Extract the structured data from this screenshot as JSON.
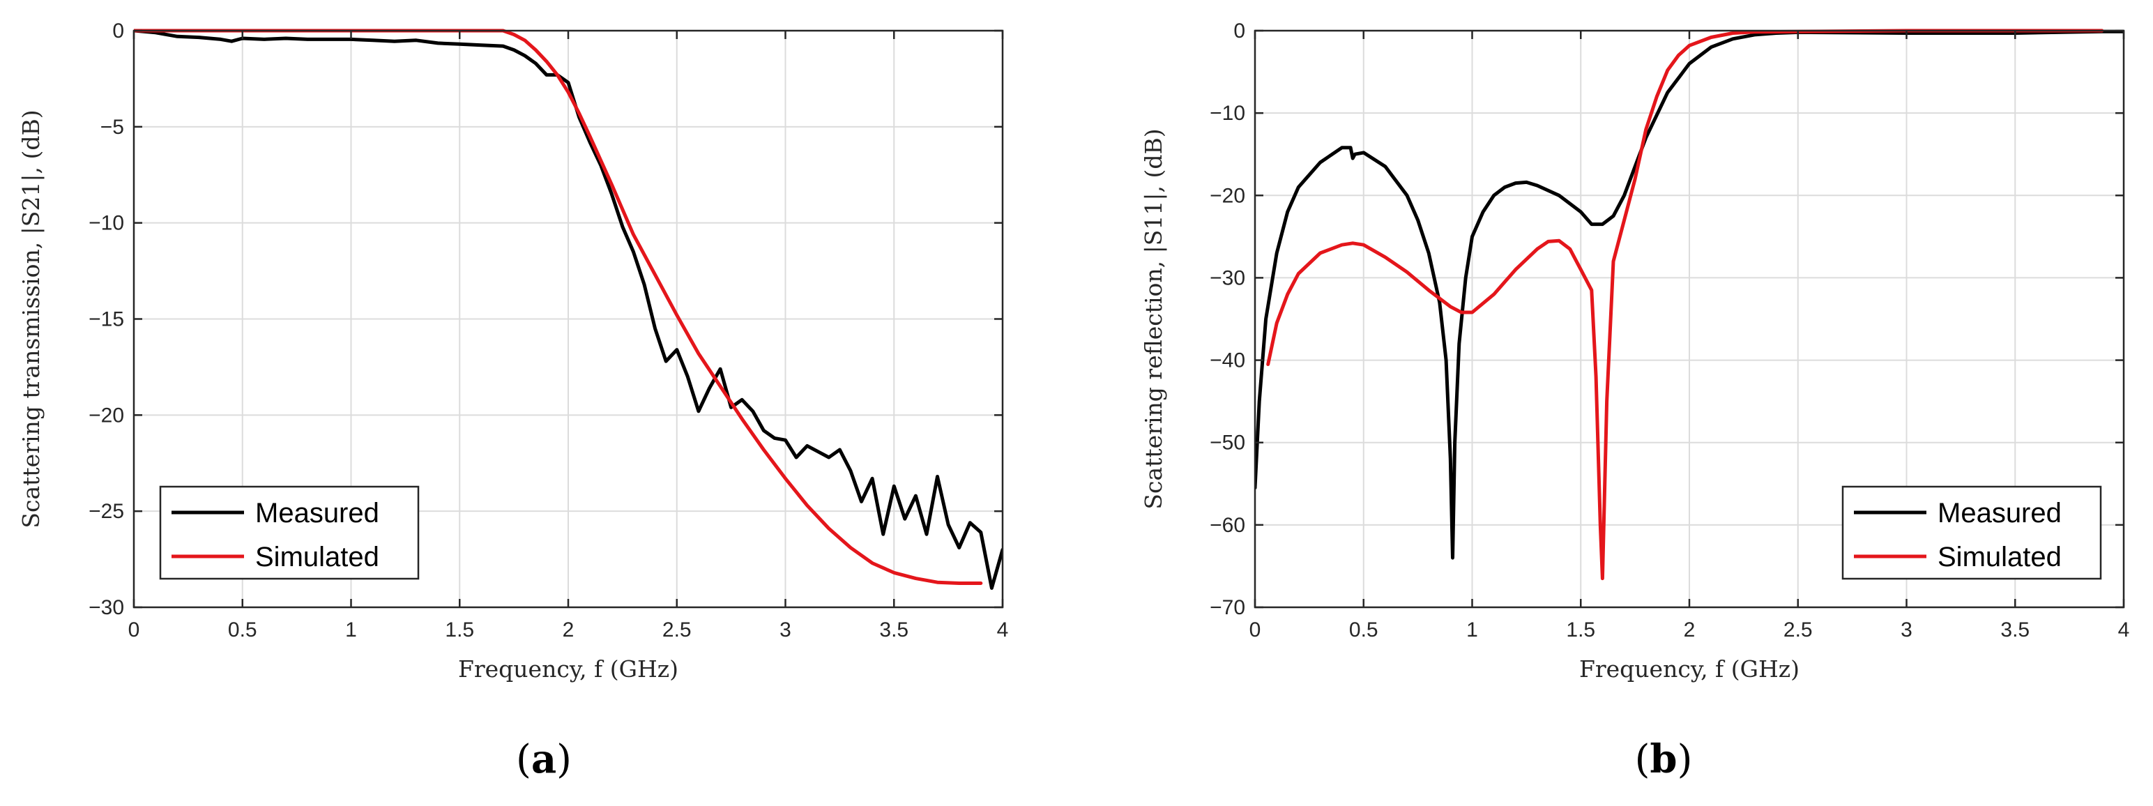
{
  "colors": {
    "measured": "#000000",
    "simulated": "#e4161b",
    "grid": "#dcdcdc",
    "axis": "#262626"
  },
  "chart_data": [
    {
      "type": "line",
      "panel_label_prefix": "(",
      "panel_label": "a",
      "panel_label_suffix": ")",
      "xlabel": "Frequency, f (GHz)",
      "ylabel": "Scattering transmission, |S21|, (dB)",
      "xlim": [
        0,
        4
      ],
      "ylim": [
        -30,
        0
      ],
      "xticks": [
        0,
        0.5,
        1,
        1.5,
        2,
        2.5,
        3,
        3.5,
        4
      ],
      "xtick_labels": [
        "0",
        "0.5",
        "1",
        "1.5",
        "2",
        "2.5",
        "3",
        "3.5",
        "4"
      ],
      "yticks": [
        -30,
        -25,
        -20,
        -15,
        -10,
        -5,
        0
      ],
      "ytick_labels": [
        "−30",
        "−25",
        "−20",
        "−15",
        "−10",
        "−5",
        "0"
      ],
      "grid": true,
      "legend_position": "bottom-left",
      "series": [
        {
          "name": "Measured",
          "color": "#000000",
          "x": [
            0,
            0.1,
            0.2,
            0.3,
            0.4,
            0.45,
            0.5,
            0.6,
            0.7,
            0.8,
            0.9,
            1.0,
            1.1,
            1.2,
            1.3,
            1.4,
            1.5,
            1.6,
            1.7,
            1.75,
            1.8,
            1.85,
            1.9,
            1.95,
            2.0,
            2.05,
            2.1,
            2.15,
            2.2,
            2.25,
            2.3,
            2.35,
            2.4,
            2.45,
            2.5,
            2.55,
            2.6,
            2.65,
            2.7,
            2.75,
            2.8,
            2.85,
            2.9,
            2.95,
            3.0,
            3.05,
            3.1,
            3.15,
            3.2,
            3.25,
            3.3,
            3.35,
            3.4,
            3.45,
            3.5,
            3.55,
            3.6,
            3.65,
            3.7,
            3.75,
            3.8,
            3.85,
            3.9,
            3.95,
            4.0
          ],
          "y": [
            0,
            -0.1,
            -0.3,
            -0.35,
            -0.45,
            -0.55,
            -0.4,
            -0.45,
            -0.4,
            -0.45,
            -0.45,
            -0.45,
            -0.5,
            -0.55,
            -0.5,
            -0.65,
            -0.7,
            -0.75,
            -0.8,
            -1.0,
            -1.3,
            -1.7,
            -2.3,
            -2.3,
            -2.7,
            -4.5,
            -5.8,
            -7.0,
            -8.5,
            -10.2,
            -11.5,
            -13.2,
            -15.5,
            -17.2,
            -16.6,
            -18.0,
            -19.8,
            -18.6,
            -17.6,
            -19.6,
            -19.2,
            -19.8,
            -20.8,
            -21.2,
            -21.3,
            -22.2,
            -21.6,
            -21.9,
            -22.2,
            -21.8,
            -22.9,
            -24.5,
            -23.3,
            -26.2,
            -23.7,
            -25.4,
            -24.2,
            -26.2,
            -23.2,
            -25.7,
            -26.9,
            -25.6,
            -26.1,
            -29.0,
            -27.0
          ]
        },
        {
          "name": "Simulated",
          "color": "#e4161b",
          "x": [
            0,
            0.5,
            1.0,
            1.5,
            1.7,
            1.75,
            1.8,
            1.85,
            1.9,
            1.95,
            2.0,
            2.05,
            2.1,
            2.2,
            2.3,
            2.4,
            2.5,
            2.6,
            2.7,
            2.8,
            2.9,
            3.0,
            3.1,
            3.2,
            3.3,
            3.4,
            3.5,
            3.6,
            3.7,
            3.8,
            3.9
          ],
          "y": [
            0,
            0,
            0,
            0,
            0,
            -0.2,
            -0.5,
            -1.0,
            -1.6,
            -2.3,
            -3.2,
            -4.3,
            -5.5,
            -8.0,
            -10.6,
            -12.7,
            -14.8,
            -16.8,
            -18.5,
            -20.2,
            -21.8,
            -23.3,
            -24.7,
            -25.9,
            -26.9,
            -27.7,
            -28.2,
            -28.5,
            -28.7,
            -28.75,
            -28.75
          ]
        }
      ]
    },
    {
      "type": "line",
      "panel_label_prefix": "(",
      "panel_label": "b",
      "panel_label_suffix": ")",
      "xlabel": "Frequency, f (GHz)",
      "ylabel": "Scattering reflection, |S11|, (dB)",
      "xlim": [
        0,
        4
      ],
      "ylim": [
        -70,
        0
      ],
      "xticks": [
        0,
        0.5,
        1,
        1.5,
        2,
        2.5,
        3,
        3.5,
        4
      ],
      "xtick_labels": [
        "0",
        "0.5",
        "1",
        "1.5",
        "2",
        "2.5",
        "3",
        "3.5",
        "4"
      ],
      "yticks": [
        -70,
        -60,
        -50,
        -40,
        -30,
        -20,
        -10,
        0
      ],
      "ytick_labels": [
        "−70",
        "−60",
        "−50",
        "−40",
        "−30",
        "−20",
        "−10",
        "0"
      ],
      "grid": true,
      "legend_position": "bottom-right",
      "series": [
        {
          "name": "Measured",
          "color": "#000000",
          "x": [
            0.0,
            0.02,
            0.05,
            0.1,
            0.15,
            0.2,
            0.3,
            0.4,
            0.44,
            0.45,
            0.46,
            0.5,
            0.6,
            0.7,
            0.75,
            0.8,
            0.85,
            0.88,
            0.9,
            0.91,
            0.92,
            0.94,
            0.97,
            1.0,
            1.05,
            1.1,
            1.15,
            1.2,
            1.25,
            1.3,
            1.4,
            1.5,
            1.55,
            1.6,
            1.65,
            1.7,
            1.75,
            1.8,
            1.9,
            2.0,
            2.1,
            2.2,
            2.3,
            2.4,
            2.5,
            3.0,
            3.5,
            3.9,
            4.0
          ],
          "y": [
            -55.5,
            -45,
            -35,
            -27,
            -22,
            -19,
            -16,
            -14.2,
            -14.2,
            -15.5,
            -15.0,
            -14.8,
            -16.5,
            -20,
            -23,
            -27,
            -33,
            -40,
            -52,
            -64,
            -50,
            -38,
            -30,
            -25,
            -22,
            -20,
            -19,
            -18.5,
            -18.4,
            -18.8,
            -20,
            -22,
            -23.5,
            -23.5,
            -22.5,
            -20,
            -16.5,
            -13,
            -7.5,
            -4,
            -2,
            -1,
            -0.5,
            -0.3,
            -0.2,
            -0.3,
            -0.3,
            -0.1,
            -0.1
          ]
        },
        {
          "name": "Simulated",
          "color": "#e4161b",
          "x": [
            0.06,
            0.1,
            0.15,
            0.2,
            0.3,
            0.4,
            0.45,
            0.5,
            0.6,
            0.7,
            0.8,
            0.9,
            0.95,
            1.0,
            1.1,
            1.2,
            1.3,
            1.35,
            1.4,
            1.45,
            1.5,
            1.55,
            1.57,
            1.59,
            1.6,
            1.62,
            1.65,
            1.7,
            1.75,
            1.8,
            1.85,
            1.9,
            1.95,
            2.0,
            2.1,
            2.2,
            2.3,
            2.5,
            3.0,
            3.5,
            3.9
          ],
          "y": [
            -40.5,
            -35.5,
            -32,
            -29.5,
            -27,
            -26,
            -25.8,
            -26,
            -27.5,
            -29.3,
            -31.5,
            -33.5,
            -34.2,
            -34.2,
            -32,
            -29,
            -26.5,
            -25.6,
            -25.5,
            -26.5,
            -29,
            -31.5,
            -42,
            -60,
            -66.5,
            -45,
            -28,
            -23,
            -18,
            -12,
            -8,
            -4.8,
            -3,
            -1.8,
            -0.8,
            -0.3,
            -0.15,
            -0.1,
            0,
            0,
            0
          ]
        }
      ]
    }
  ]
}
